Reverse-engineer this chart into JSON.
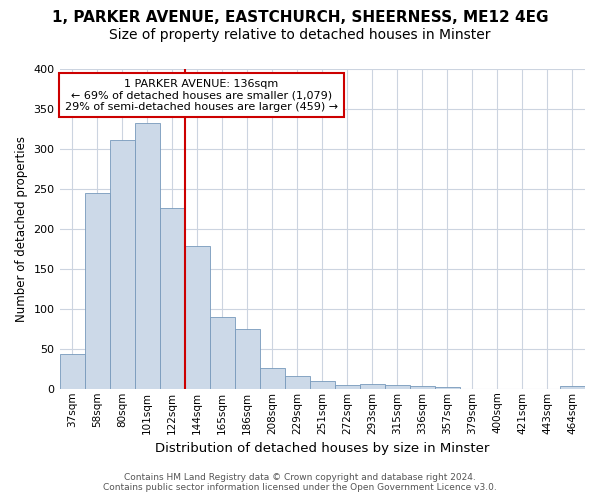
{
  "title1": "1, PARKER AVENUE, EASTCHURCH, SHEERNESS, ME12 4EG",
  "title2": "Size of property relative to detached houses in Minster",
  "xlabel": "Distribution of detached houses by size in Minster",
  "ylabel": "Number of detached properties",
  "footer1": "Contains HM Land Registry data © Crown copyright and database right 2024.",
  "footer2": "Contains public sector information licensed under the Open Government Licence v3.0.",
  "categories": [
    "37sqm",
    "58sqm",
    "80sqm",
    "101sqm",
    "122sqm",
    "144sqm",
    "165sqm",
    "186sqm",
    "208sqm",
    "229sqm",
    "251sqm",
    "272sqm",
    "293sqm",
    "315sqm",
    "336sqm",
    "357sqm",
    "379sqm",
    "400sqm",
    "421sqm",
    "443sqm",
    "464sqm"
  ],
  "values": [
    43,
    245,
    311,
    333,
    226,
    179,
    90,
    75,
    26,
    16,
    10,
    5,
    6,
    5,
    3,
    2,
    0,
    0,
    0,
    0,
    4
  ],
  "bar_color": "#ccd9e8",
  "bar_edge_color": "#7799bb",
  "grid_color": "#ccd4e0",
  "vline_color": "#cc0000",
  "vline_x_index": 5,
  "annotation_title": "1 PARKER AVENUE: 136sqm",
  "annotation_line1": "← 69% of detached houses are smaller (1,079)",
  "annotation_line2": "29% of semi-detached houses are larger (459) →",
  "annotation_box_edgecolor": "#cc0000",
  "ylim": [
    0,
    400
  ],
  "yticks": [
    0,
    50,
    100,
    150,
    200,
    250,
    300,
    350,
    400
  ],
  "background_color": "#ffffff",
  "plot_background": "#ffffff",
  "title1_fontsize": 11,
  "title2_fontsize": 10
}
